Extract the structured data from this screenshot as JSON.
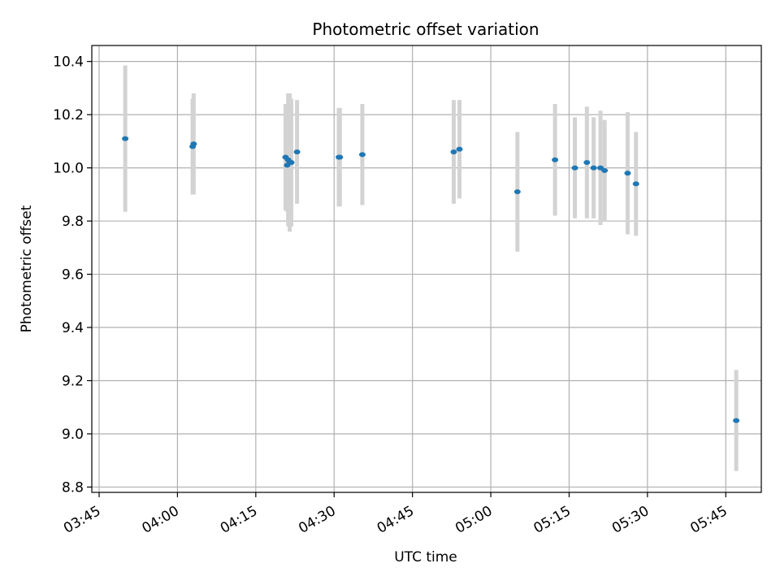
{
  "chart_data": {
    "type": "scatter",
    "title": "Photometric offset variation",
    "xlabel": "UTC time",
    "ylabel": "Photometric offset",
    "x_ticks": [
      "03:45",
      "04:00",
      "04:15",
      "04:30",
      "04:45",
      "05:00",
      "05:15",
      "05:30",
      "05:45"
    ],
    "x_tick_minutes": [
      225,
      240,
      255,
      270,
      285,
      300,
      315,
      330,
      345
    ],
    "xlim_minutes": [
      223.6,
      351.8
    ],
    "y_ticks": [
      "8.8",
      "9.0",
      "9.2",
      "9.4",
      "9.6",
      "9.8",
      "10.0",
      "10.2",
      "10.4"
    ],
    "y_tick_values": [
      8.8,
      9.0,
      9.2,
      9.4,
      9.6,
      9.8,
      10.0,
      10.2,
      10.4
    ],
    "ylim": [
      8.78,
      10.46
    ],
    "grid": true,
    "point_color": "#1f77b4",
    "errorbar_color": "#d3d3d3",
    "series": [
      {
        "points": [
          {
            "x": "03:50:00",
            "y": 10.11,
            "err": 0.275
          },
          {
            "x": "04:02:54",
            "y": 10.08,
            "err": 0.18
          },
          {
            "x": "04:03:06",
            "y": 10.09,
            "err": 0.19
          },
          {
            "x": "04:20:42",
            "y": 10.04,
            "err": 0.2
          },
          {
            "x": "04:21:00",
            "y": 10.01,
            "err": 0.175
          },
          {
            "x": "04:21:12",
            "y": 10.03,
            "err": 0.25
          },
          {
            "x": "04:21:30",
            "y": 10.02,
            "err": 0.26
          },
          {
            "x": "04:21:48",
            "y": 10.02,
            "err": 0.24
          },
          {
            "x": "04:22:54",
            "y": 10.06,
            "err": 0.195
          },
          {
            "x": "04:30:54",
            "y": 10.04,
            "err": 0.185
          },
          {
            "x": "04:31:06",
            "y": 10.04,
            "err": 0.185
          },
          {
            "x": "04:35:24",
            "y": 10.05,
            "err": 0.19
          },
          {
            "x": "04:52:54",
            "y": 10.06,
            "err": 0.195
          },
          {
            "x": "04:54:00",
            "y": 10.07,
            "err": 0.185
          },
          {
            "x": "05:05:06",
            "y": 9.91,
            "err": 0.225
          },
          {
            "x": "05:12:18",
            "y": 10.03,
            "err": 0.21
          },
          {
            "x": "05:16:06",
            "y": 10.0,
            "err": 0.19
          },
          {
            "x": "05:18:24",
            "y": 10.02,
            "err": 0.21
          },
          {
            "x": "05:19:42",
            "y": 10.0,
            "err": 0.19
          },
          {
            "x": "05:21:00",
            "y": 10.0,
            "err": 0.215
          },
          {
            "x": "05:21:48",
            "y": 9.99,
            "err": 0.19
          },
          {
            "x": "05:26:12",
            "y": 9.98,
            "err": 0.23
          },
          {
            "x": "05:27:48",
            "y": 9.94,
            "err": 0.195
          },
          {
            "x": "05:47:00",
            "y": 9.05,
            "err": 0.19
          }
        ]
      }
    ]
  }
}
